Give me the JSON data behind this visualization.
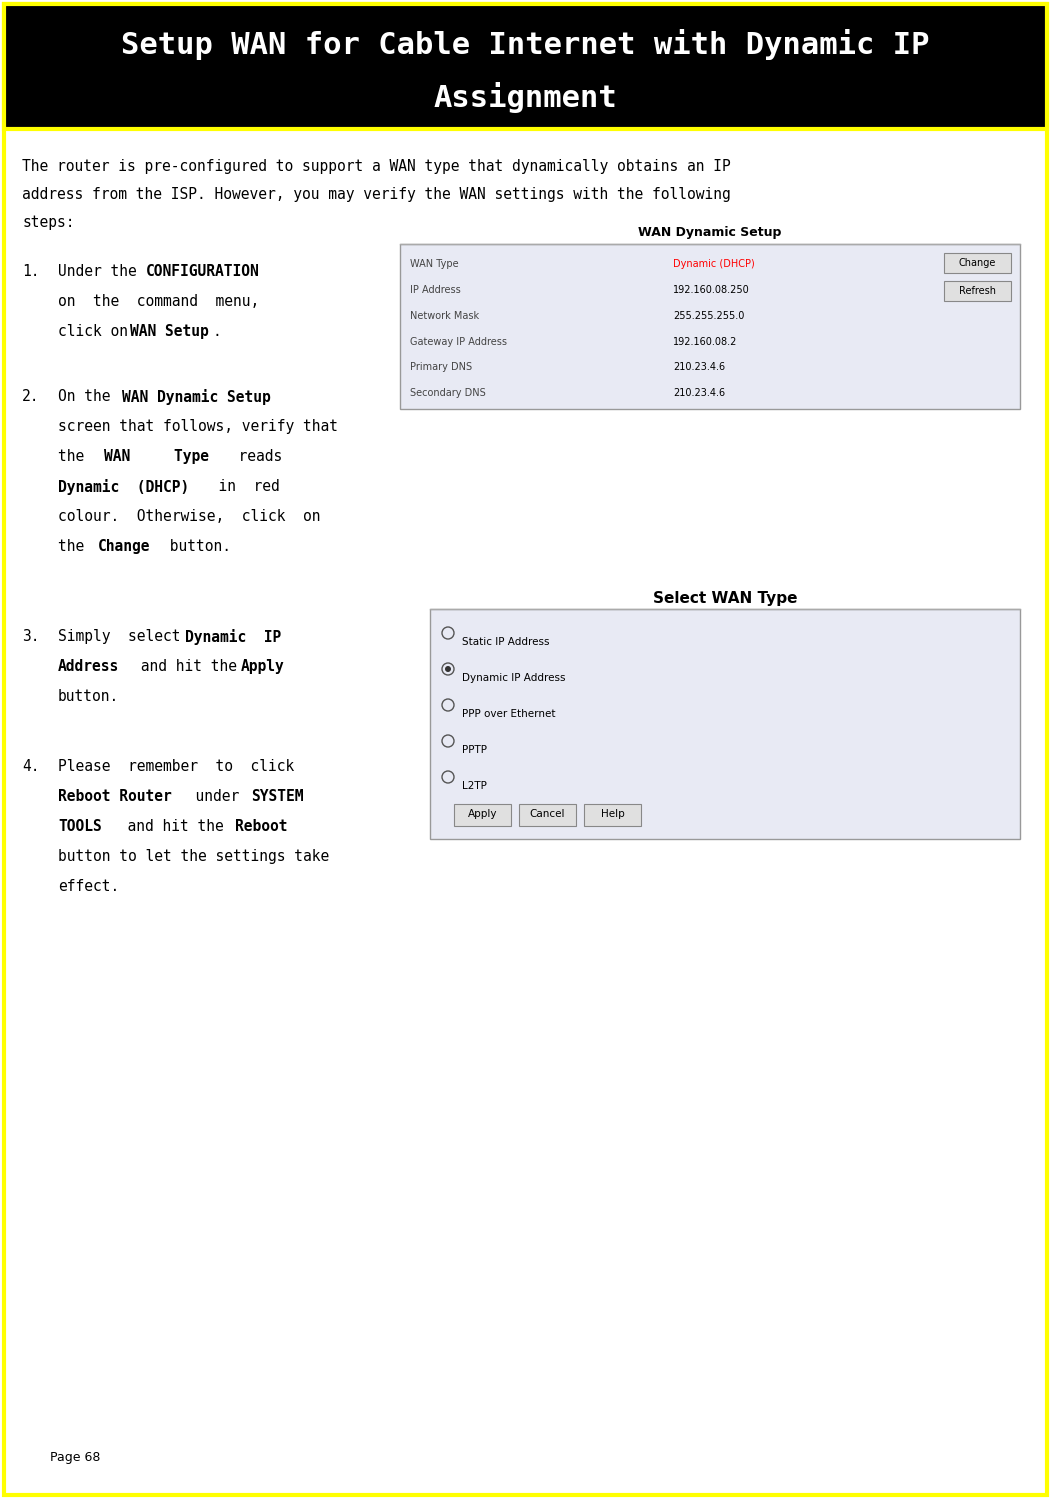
{
  "title_line1": "Setup WAN for Cable Internet with Dynamic IP",
  "title_line2": "Assignment",
  "title_bg": "#000000",
  "title_fg": "#ffffff",
  "title_border": "#ffff00",
  "page_bg": "#ffffff",
  "page_border": "#ffff00",
  "intro_text": "The router is pre-configured to support a WAN type that dynamically obtains an IP\naddress from the ISP. However, you may verify the WAN settings with the following\nsteps:",
  "wan_setup_title": "WAN Dynamic Setup",
  "wan_table_rows": [
    [
      "WAN Type",
      "Dynamic (DHCP)",
      "red"
    ],
    [
      "IP Address",
      "192.160.08.250",
      "black"
    ],
    [
      "Network Mask",
      "255.255.255.0",
      "black"
    ],
    [
      "Gateway IP Address",
      "192.160.08.2",
      "black"
    ],
    [
      "Primary DNS",
      "210.23.4.6",
      "black"
    ],
    [
      "Secondary DNS",
      "210.23.4.6",
      "black"
    ]
  ],
  "wan_buttons": [
    "Change",
    "Refresh"
  ],
  "select_wan_title": "Select WAN Type",
  "select_wan_options": [
    "Static IP Address",
    "Dynamic IP Address",
    "PPP over Ethernet",
    "PPTP",
    "L2TP"
  ],
  "select_wan_selected": 1,
  "select_wan_buttons": [
    "Apply",
    "Cancel",
    "Help"
  ],
  "page_number": "Page 68",
  "font_name": "DejaVu Sans Mono",
  "font_size_body": 10.5,
  "font_size_title": 22
}
